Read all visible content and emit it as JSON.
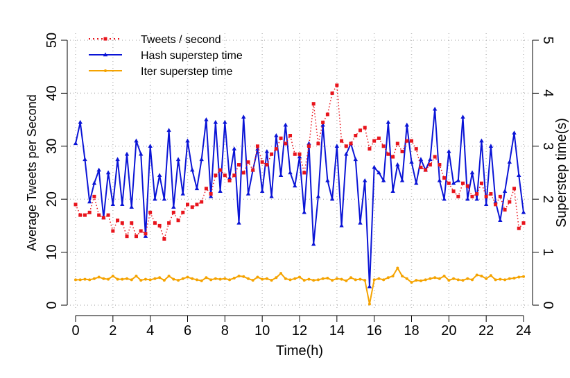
{
  "chart_data": {
    "type": "line",
    "xlabel": "Time(h)",
    "ylabel": "Average Tweets per Second",
    "y2label": "Superstep time(s)",
    "x": [
      0,
      0.25,
      0.5,
      0.75,
      1,
      1.25,
      1.5,
      1.75,
      2,
      2.25,
      2.5,
      2.75,
      3,
      3.25,
      3.5,
      3.75,
      4,
      4.25,
      4.5,
      4.75,
      5,
      5.25,
      5.5,
      5.75,
      6,
      6.25,
      6.5,
      6.75,
      7,
      7.25,
      7.5,
      7.75,
      8,
      8.25,
      8.5,
      8.75,
      9,
      9.25,
      9.5,
      9.75,
      10,
      10.25,
      10.5,
      10.75,
      11,
      11.25,
      11.5,
      11.75,
      12,
      12.25,
      12.5,
      12.75,
      13,
      13.25,
      13.5,
      13.75,
      14,
      14.25,
      14.5,
      14.75,
      15,
      15.25,
      15.5,
      15.75,
      16,
      16.25,
      16.5,
      16.75,
      17,
      17.25,
      17.5,
      17.75,
      18,
      18.25,
      18.5,
      18.75,
      19,
      19.25,
      19.5,
      19.75,
      20,
      20.25,
      20.5,
      20.75,
      21,
      21.25,
      21.5,
      21.75,
      22,
      22.25,
      22.5,
      22.75,
      23,
      23.25,
      23.5,
      23.75,
      24
    ],
    "series": [
      {
        "name": "Tweets / second",
        "color": "#e8141c",
        "marker": "square",
        "dash": true,
        "values": [
          19,
          17,
          17,
          17.5,
          20.5,
          17,
          16.5,
          17,
          14,
          16,
          15.5,
          13,
          15.5,
          13,
          14,
          13.5,
          17.5,
          15.5,
          15,
          12.5,
          15.5,
          17.5,
          16,
          17.5,
          19,
          18.5,
          19,
          19.5,
          22,
          21,
          24.5,
          25.5,
          24.5,
          23.5,
          24.5,
          26.5,
          25,
          27,
          25.5,
          30,
          27,
          26.5,
          28.5,
          29.5,
          31.5,
          30.5,
          32,
          28.5,
          28.5,
          25,
          30,
          38,
          30.5,
          34.5,
          36,
          40,
          41.5,
          31,
          30,
          30.5,
          32,
          33,
          33.5,
          29.5,
          31,
          31.5,
          30,
          28.5,
          28,
          30.5,
          29,
          31,
          31,
          29.5,
          26,
          25.5,
          26.5,
          28,
          26.5,
          24,
          23,
          21.5,
          20.5,
          23,
          22.5,
          20.5,
          21,
          23,
          20.5,
          21,
          19,
          20.5,
          18,
          19.5,
          22,
          14.5,
          15.5
        ]
      },
      {
        "name": "Hash superstep time",
        "color": "#0a14d6",
        "marker": "triangle",
        "axis": "y2",
        "values": [
          3.05,
          3.45,
          2.75,
          1.95,
          2.3,
          2.55,
          1.65,
          2.5,
          1.9,
          2.75,
          1.9,
          2.85,
          1.85,
          3.1,
          2.85,
          1.3,
          3.0,
          2.0,
          2.45,
          2.0,
          3.3,
          1.85,
          2.75,
          2.1,
          3.1,
          2.55,
          2.2,
          2.75,
          3.5,
          2.05,
          3.45,
          2.15,
          3.45,
          2.4,
          2.95,
          1.55,
          3.55,
          2.1,
          2.55,
          2.95,
          2.15,
          2.9,
          2.05,
          3.2,
          2.45,
          3.4,
          2.5,
          2.25,
          2.8,
          1.75,
          3.05,
          1.15,
          2.05,
          3.4,
          2.35,
          2.0,
          3.0,
          1.5,
          2.85,
          3.05,
          2.75,
          1.55,
          2.35,
          0.35,
          2.6,
          2.5,
          2.35,
          3.45,
          2.15,
          2.65,
          2.35,
          3.4,
          2.7,
          2.3,
          2.75,
          2.55,
          2.75,
          3.7,
          2.35,
          2.0,
          2.9,
          2.3,
          2.35,
          3.55,
          2.0,
          2.5,
          2.0,
          3.1,
          1.9,
          3.0,
          1.95,
          1.6,
          2.15,
          2.7,
          3.25,
          2.45,
          1.75
        ]
      },
      {
        "name": "Iter superstep time",
        "color": "#f5a300",
        "marker": "circle",
        "axis": "y2",
        "values": [
          0.48,
          0.48,
          0.49,
          0.48,
          0.5,
          0.53,
          0.5,
          0.49,
          0.55,
          0.49,
          0.49,
          0.5,
          0.48,
          0.55,
          0.47,
          0.49,
          0.48,
          0.5,
          0.52,
          0.47,
          0.55,
          0.49,
          0.47,
          0.5,
          0.53,
          0.5,
          0.48,
          0.46,
          0.52,
          0.48,
          0.5,
          0.49,
          0.5,
          0.48,
          0.51,
          0.55,
          0.54,
          0.5,
          0.47,
          0.53,
          0.49,
          0.5,
          0.47,
          0.52,
          0.6,
          0.5,
          0.48,
          0.5,
          0.53,
          0.47,
          0.49,
          0.47,
          0.48,
          0.5,
          0.51,
          0.47,
          0.5,
          0.49,
          0.46,
          0.52,
          0.48,
          0.49,
          0.47,
          0.02,
          0.48,
          0.5,
          0.48,
          0.52,
          0.55,
          0.7,
          0.55,
          0.5,
          0.43,
          0.47,
          0.46,
          0.48,
          0.5,
          0.52,
          0.5,
          0.55,
          0.47,
          0.5,
          0.48,
          0.47,
          0.5,
          0.48,
          0.57,
          0.55,
          0.5,
          0.56,
          0.48,
          0.49,
          0.48,
          0.5,
          0.51,
          0.53,
          0.54
        ]
      }
    ],
    "xlim": [
      0,
      24
    ],
    "xticks": [
      0,
      2,
      4,
      6,
      8,
      10,
      12,
      14,
      16,
      18,
      20,
      22,
      24
    ],
    "ylim": [
      0,
      50
    ],
    "yticks": [
      0,
      10,
      20,
      30,
      40,
      50
    ],
    "y2lim": [
      0,
      5
    ],
    "y2ticks": [
      0,
      1,
      2,
      3,
      4,
      5
    ],
    "grid": true,
    "legend": "top-left"
  }
}
